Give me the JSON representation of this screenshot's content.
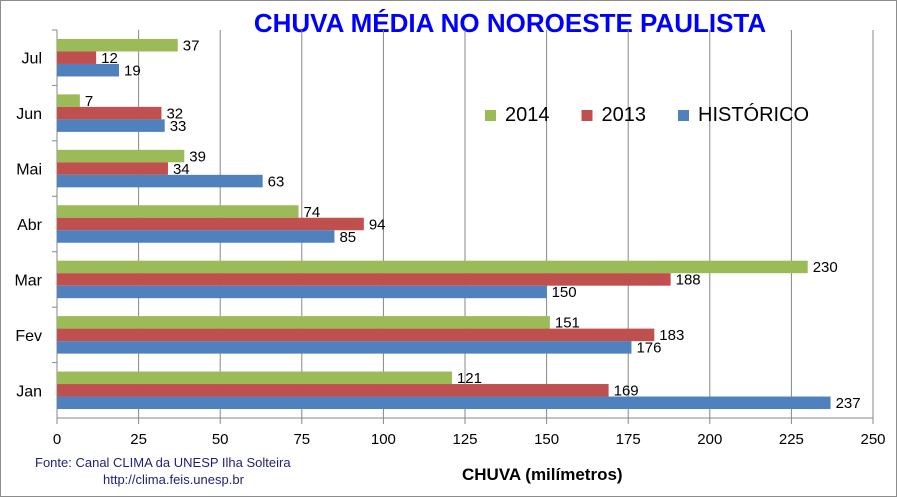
{
  "chart_data": {
    "type": "bar",
    "orientation": "horizontal",
    "title": "CHUVA MÉDIA NO NOROESTE PAULISTA",
    "xlabel": "CHUVA (milímetros)",
    "ylabel": "",
    "xlim": [
      0,
      250
    ],
    "xticks": [
      0,
      25,
      50,
      75,
      100,
      125,
      150,
      175,
      200,
      225,
      250
    ],
    "grid": true,
    "legend_position": "top-right",
    "categories": [
      "Jan",
      "Fev",
      "Mar",
      "Abr",
      "Mai",
      "Jun",
      "Jul"
    ],
    "series": [
      {
        "name": "2014",
        "color": "#9bbb59",
        "values": [
          121,
          151,
          230,
          74,
          39,
          7,
          37
        ]
      },
      {
        "name": "2013",
        "color": "#c0504d",
        "values": [
          169,
          183,
          188,
          94,
          34,
          32,
          12
        ]
      },
      {
        "name": "HISTÓRICO",
        "color": "#4f81bd",
        "values": [
          237,
          176,
          150,
          85,
          63,
          33,
          19
        ]
      }
    ]
  },
  "source": {
    "line1": "Fonte: Canal CLIMA da UNESP Ilha Solteira",
    "line2": "http://clima.feis.unesp.br"
  }
}
